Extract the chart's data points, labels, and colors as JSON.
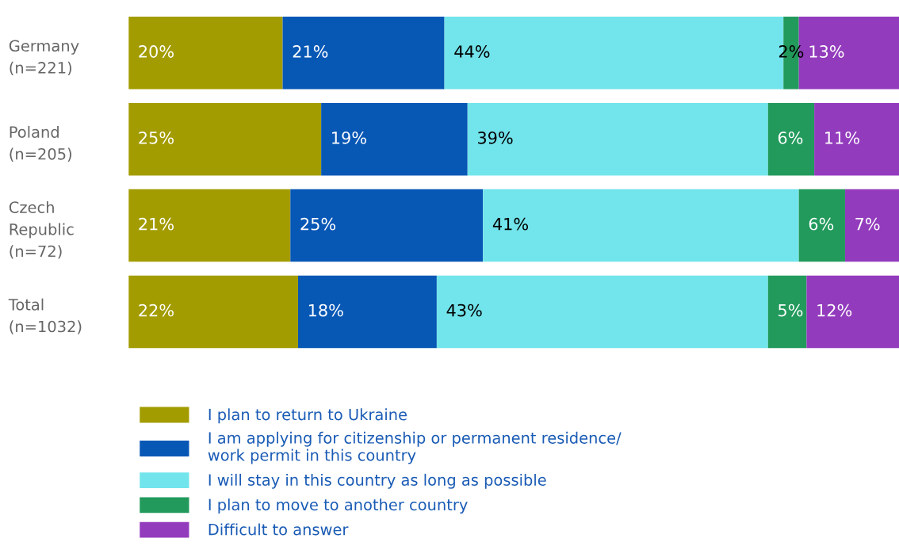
{
  "chart_data": {
    "type": "bar",
    "orientation": "horizontal",
    "stacked": true,
    "categories": [
      "Germany\n(n=221)",
      "Poland\n(n=205)",
      "Czech\nRepublic\n(n=72)",
      "Total\n(n=1032)"
    ],
    "xlim": [
      0,
      100
    ],
    "tick_labels": "y",
    "grid": false,
    "legend": "bottom",
    "series": [
      {
        "name": "I plan to return to Ukraine",
        "color": "#a39c00",
        "values": [
          20,
          25,
          21,
          22
        ],
        "value_labels": [
          "20%",
          "25%",
          "21%",
          "22%"
        ]
      },
      {
        "name": "I am applying for citizenship or permanent residence/\nwork permit in this country",
        "color": "#0757b5",
        "values": [
          21,
          19,
          25,
          18
        ],
        "value_labels": [
          "21%",
          "19%",
          "25%",
          "18%"
        ]
      },
      {
        "name": "I will stay in this country as long as possible",
        "color": "#72e4eb",
        "values": [
          44,
          39,
          41,
          43
        ],
        "value_labels": [
          "44%",
          "39%",
          "41%",
          "43%"
        ]
      },
      {
        "name": "I plan to move to another country",
        "color": "#229a5c",
        "values": [
          2,
          6,
          6,
          5
        ],
        "value_labels": [
          "2%",
          "6%",
          "6%",
          "5%"
        ]
      },
      {
        "name": "Difficult to answer",
        "color": "#933bbd",
        "values": [
          13,
          11,
          7,
          12
        ],
        "value_labels": [
          "13%",
          "11%",
          "7%",
          "12%"
        ]
      }
    ]
  }
}
